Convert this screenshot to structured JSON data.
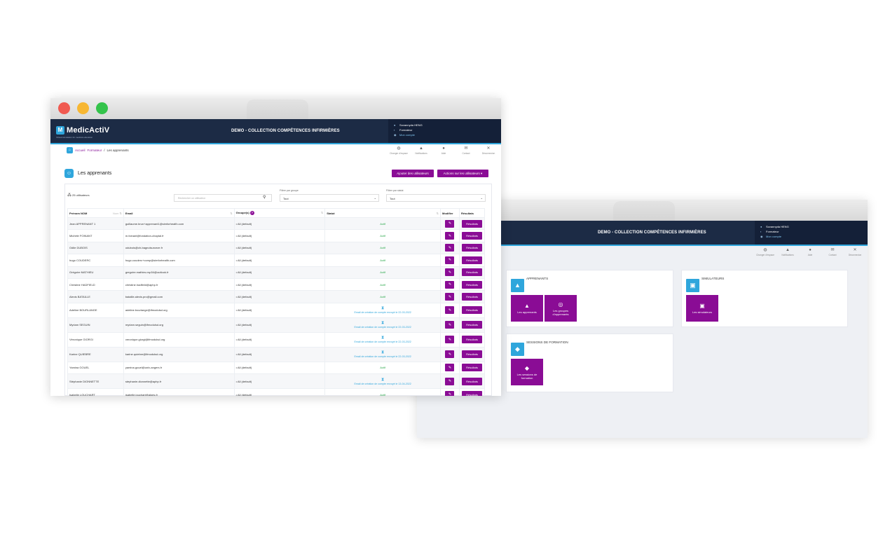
{
  "app": {
    "logo_text": "MedicActiV",
    "logo_mark": "M",
    "logo_tagline": "Virtual simulation for medical education",
    "title": "DEMO - COLLECTION COMPÉTENCES INFIRMIÈRES"
  },
  "user": {
    "name": "Sovannyda HENG",
    "role": "Formateur",
    "account_link": "Mon compte"
  },
  "toolbar": {
    "items": [
      {
        "icon": "globe-icon",
        "glyph": "⟲",
        "label": "Changer d'espace"
      },
      {
        "icon": "bell-icon",
        "glyph": "🔔",
        "label": "Notifications"
      },
      {
        "icon": "help-icon",
        "glyph": "?",
        "label": "Aide"
      },
      {
        "icon": "mail-icon",
        "glyph": "✉",
        "label": "Contact"
      },
      {
        "icon": "close-icon",
        "glyph": "✕",
        "label": "Déconnexion"
      }
    ]
  },
  "breadcrumb": {
    "home": "Accueil",
    "formateur": "Formateur",
    "separator": "/",
    "current": "Les apprenants"
  },
  "page": {
    "title": "Les apprenants",
    "add_users_button": "Ajouter des utilisateurs",
    "actions_button": "Actions sur les utilisateurs",
    "user_count": "25 utilisateurs",
    "search_placeholder": "Rechercher un utilisateur",
    "filter_group_label": "Filtrer par groupe",
    "filter_group_value": "Tout",
    "filter_status_label": "Filtrer par statut",
    "filter_status_value": "Tout"
  },
  "table": {
    "headers": {
      "name": "Prénom NOM",
      "name_sort": "Nom",
      "email": "Email",
      "groups": "Groupe(s)",
      "status": "Statut",
      "edit": "Modifier",
      "results": "Résultats"
    },
    "results_label": "Résultats",
    "rows": [
      {
        "name": "Jean APPRENANT 1",
        "email": "guillaume.brun+apprenant1@simforhealth.com",
        "group": "All (default)",
        "status": "Actif",
        "pending": false
      },
      {
        "name": "Michèle FOINANT",
        "email": "m.foinant@fondation-chaptal.fr",
        "group": "All (default)",
        "status": "Actif",
        "pending": false
      },
      {
        "name": "Odile DUBOIS",
        "email": "odubois@ch-bagnolsurceze.fr",
        "group": "All (default)",
        "status": "Actif",
        "pending": false
      },
      {
        "name": "hugo COUDERC",
        "email": "hugo.couderc+comp@simforhealth.com",
        "group": "All (default)",
        "status": "Actif",
        "pending": false
      },
      {
        "name": "Grégoire MATHIEU",
        "email": "gregoire.mathieu.rsp34@outlook.fr",
        "group": "All (default)",
        "status": "Actif",
        "pending": false
      },
      {
        "name": "Christine HADFIELD",
        "email": "christine.hadfield@aphp.fr",
        "group": "All (default)",
        "status": "Actif",
        "pending": false
      },
      {
        "name": "Alexis BATAILLE",
        "email": "bataille.alexis.pro@gmail.com",
        "group": "All (default)",
        "status": "Actif",
        "pending": false
      },
      {
        "name": "Adeline BOURLANGE",
        "email": "adeline.bourlange@ifmodulsd.org",
        "group": "All (default)",
        "status": "Email de création de compte envoyé le 22-03-2022",
        "pending": true
      },
      {
        "name": "Myriam SEGUIN",
        "email": "myriam.seguin@ifmodulsd.org",
        "group": "All (default)",
        "status": "Email de création de compte envoyé le 22-03-2022",
        "pending": true
      },
      {
        "name": "Véronique GIORGI",
        "email": "veronique.giorgi@ifmodulsd.org",
        "group": "All (default)",
        "status": "Email de création de compte envoyé le 22-03-2022",
        "pending": true
      },
      {
        "name": "Karine QUIEBRE",
        "email": "karine.quiebre@ifmodulsd.org",
        "group": "All (default)",
        "status": "Email de création de compte envoyé le 22-03-2022",
        "pending": true
      },
      {
        "name": "Yamina GOUEL",
        "email": "yamina.gouel@univ-angers.fr",
        "group": "All (default)",
        "status": "Actif",
        "pending": false
      },
      {
        "name": "Stéphanie DIONNETTE",
        "email": "stephanie.dionnette@aphp.fr",
        "group": "All (default)",
        "status": "Email de création de compte envoyé le 13-04-2022",
        "pending": true
      },
      {
        "name": "Isabelle LOUCHART",
        "email": "isabelle.louchart@alpes.fr",
        "group": "All (default)",
        "status": "Actif",
        "pending": false
      }
    ]
  },
  "dashboard": {
    "apprenants": {
      "title": "APPRENANTS",
      "tiles": [
        "Les apprenants",
        "Les groupes d'apprenants"
      ]
    },
    "simulateurs": {
      "title": "SIMULATEURS",
      "tiles": [
        "Les simulateurs"
      ]
    },
    "sessions": {
      "title": "SESSIONS DE FORMATION",
      "tiles": [
        "Les sessions de formation"
      ]
    }
  },
  "colors": {
    "topbar": "#1c2b45",
    "accent_blue": "#2fa6dc",
    "purple": "#8a0c95",
    "active_green": "#2aa84a"
  }
}
